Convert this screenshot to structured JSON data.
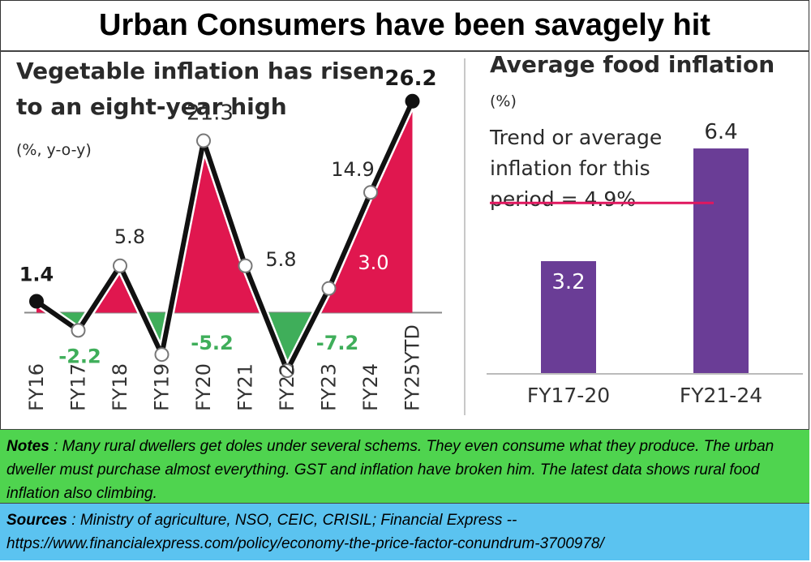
{
  "header": {
    "title": "Urban Consumers have been savagely hit"
  },
  "chart_data": [
    {
      "type": "area",
      "title": "Vegetable inflation has risen to an eight-year high",
      "title_lines": [
        "Vegetable inflation has risen",
        "to an eight-year high"
      ],
      "unit_label": "(%, y-o-y)",
      "categories": [
        "FY16",
        "FY17",
        "FY18",
        "FY19",
        "FY20",
        "FY21",
        "FY22",
        "FY23",
        "FY24",
        "FY25YTD"
      ],
      "series": [
        {
          "values": [
            1.4,
            -2.2,
            5.8,
            -5.2,
            21.3,
            5.8,
            -7.2,
            3.0,
            14.9,
            26.2
          ]
        }
      ],
      "data_labels": [
        "1.4",
        "-2.2",
        "5.8",
        "-5.2",
        "21.3",
        "5.8",
        "-7.2",
        "3.0",
        "14.9",
        "26.2"
      ],
      "ylim": [
        -9,
        30
      ],
      "colors": {
        "positive_fill": "#e0174f",
        "negative_fill": "#3fae5a",
        "line": "#111111",
        "negative_label": "#3fae5a",
        "baseline": "#888888"
      }
    },
    {
      "type": "bar",
      "title": "Average food inflation",
      "unit_label": "(%)",
      "categories": [
        "FY17-20",
        "FY21-24"
      ],
      "values": [
        3.2,
        6.4
      ],
      "data_labels": [
        "3.2",
        "6.4"
      ],
      "ylim": [
        0,
        7
      ],
      "annotation_lines": [
        "Trend or average",
        "inflation for this",
        "period = 4.9%"
      ],
      "reference_line": 4.9,
      "colors": {
        "bar": "#6a3d96",
        "reference_line": "#e0175f"
      }
    }
  ],
  "notes": {
    "label": "Notes",
    "text": " :  Many rural dwellers get doles under several schems.  They even consume what they produce. The urban dweller must purchase almost everything. GST and inflation have broken him. The latest data shows rural food inflation also climbing."
  },
  "sources": {
    "label": "Sources",
    "text": " : Ministry of agriculture, NSO, CEIC, CRISIL; Financial Express -- https://www.financialexpress.com/policy/economy-the-price-factor-conundrum-3700978/"
  }
}
